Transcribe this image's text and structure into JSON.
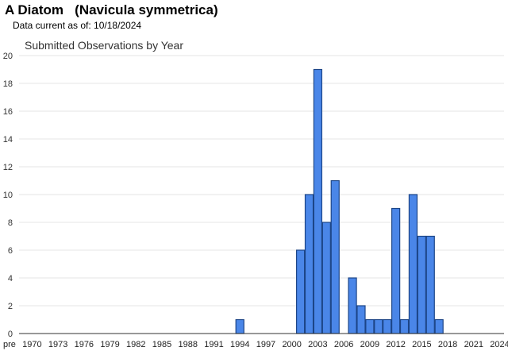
{
  "header": {
    "title": "A Diatom   (Navicula symmetrica)",
    "subtitle": "Data current as of: 10/18/2024"
  },
  "chart_data": {
    "type": "bar",
    "title": "Submitted Observations by Year",
    "xlabel": "",
    "ylabel": "",
    "ylim": [
      0,
      20
    ],
    "yticks": [
      0,
      2,
      4,
      6,
      8,
      10,
      12,
      14,
      16,
      18,
      20
    ],
    "grid": true,
    "categories": [
      "pre",
      "1970",
      "1971",
      "1972",
      "1973",
      "1974",
      "1975",
      "1976",
      "1977",
      "1978",
      "1979",
      "1980",
      "1981",
      "1982",
      "1983",
      "1984",
      "1985",
      "1986",
      "1987",
      "1988",
      "1989",
      "1990",
      "1991",
      "1992",
      "1993",
      "1994",
      "1995",
      "1996",
      "1997",
      "1998",
      "1999",
      "2000",
      "2001",
      "2002",
      "2003",
      "2004",
      "2005",
      "2006",
      "2007",
      "2008",
      "2009",
      "2010",
      "2011",
      "2012",
      "2013",
      "2014",
      "2015",
      "2016",
      "2017",
      "2018",
      "2019",
      "2020",
      "2021",
      "2022",
      "2023",
      "2024"
    ],
    "values": [
      0,
      0,
      0,
      0,
      0,
      0,
      0,
      0,
      0,
      0,
      0,
      0,
      0,
      0,
      0,
      0,
      0,
      0,
      0,
      0,
      0,
      0,
      0,
      0,
      0,
      1,
      0,
      0,
      0,
      0,
      0,
      0,
      6,
      10,
      19,
      8,
      11,
      0,
      4,
      2,
      1,
      1,
      1,
      9,
      1,
      10,
      7,
      7,
      1,
      0,
      0,
      0,
      0,
      0,
      0,
      0
    ],
    "xtick_labels": [
      "pre",
      "1970",
      "1973",
      "1976",
      "1979",
      "1982",
      "1985",
      "1988",
      "1991",
      "1994",
      "1997",
      "2000",
      "2003",
      "2006",
      "2009",
      "2012",
      "2015",
      "2018",
      "2021",
      "2024"
    ],
    "colors": {
      "bar_fill": "#4a86e8",
      "bar_stroke": "#1c4587",
      "grid": "#e6e6e6",
      "axis": "#333333"
    }
  }
}
